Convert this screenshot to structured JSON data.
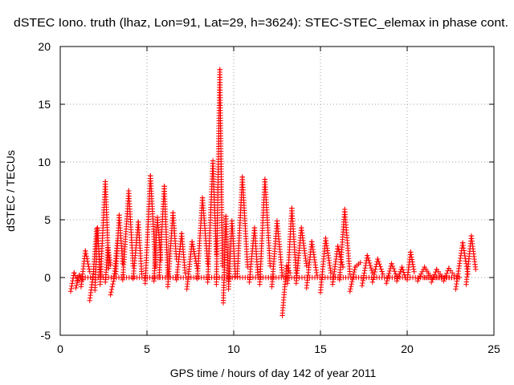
{
  "chart_data": {
    "type": "scatter",
    "title": "dSTEC Iono. truth (lhaz, Lon=91, Lat=29, h=3624): STEC-STEC_elemax in phase cont.",
    "xlabel": "GPS time / hours of day 142 of year 2011",
    "ylabel": "dSTEC  / TECUs",
    "xlim": [
      0,
      25
    ],
    "ylim": [
      -5,
      20
    ],
    "xticks": [
      0,
      5,
      10,
      15,
      20,
      25
    ],
    "yticks": [
      -5,
      0,
      5,
      10,
      15,
      20
    ],
    "grid": true,
    "marker": "plus",
    "color": "#ff0000",
    "arcs": [
      {
        "x": [
          0.6,
          0.8,
          1.0
        ],
        "y": [
          -1.2,
          0.4,
          -0.3
        ]
      },
      {
        "x": [
          0.9,
          1.1,
          1.3
        ],
        "y": [
          -0.9,
          0.2,
          -0.2
        ]
      },
      {
        "x": [
          1.2,
          1.45,
          1.7
        ],
        "y": [
          -0.8,
          2.3,
          0.5
        ]
      },
      {
        "x": [
          1.7,
          1.9,
          2.1
        ],
        "y": [
          -2.0,
          0.3,
          4.2
        ]
      },
      {
        "x": [
          2.0,
          2.15,
          2.3
        ],
        "y": [
          -1.1,
          4.3,
          0.2
        ]
      },
      {
        "x": [
          2.3,
          2.6,
          2.8
        ],
        "y": [
          -0.6,
          8.3,
          0.8
        ]
      },
      {
        "x": [
          2.6,
          2.75,
          2.9
        ],
        "y": [
          -0.4,
          2.6,
          1.1
        ]
      },
      {
        "x": [
          2.9,
          3.1,
          3.3
        ],
        "y": [
          -1.5,
          -0.1,
          3.2
        ]
      },
      {
        "x": [
          3.2,
          3.4,
          3.6
        ],
        "y": [
          0.3,
          5.4,
          1.2
        ]
      },
      {
        "x": [
          3.6,
          3.95,
          4.2
        ],
        "y": [
          -0.2,
          7.5,
          1.0
        ]
      },
      {
        "x": [
          4.2,
          4.5,
          4.7
        ],
        "y": [
          -0.1,
          4.8,
          0.3
        ]
      },
      {
        "x": [
          4.9,
          5.2,
          5.5
        ],
        "y": [
          -0.5,
          8.8,
          0.9
        ]
      },
      {
        "x": [
          5.4,
          5.6,
          5.8
        ],
        "y": [
          -0.3,
          5.2,
          1.5
        ]
      },
      {
        "x": [
          5.7,
          6.0,
          6.2
        ],
        "y": [
          0.0,
          7.9,
          0.2
        ]
      },
      {
        "x": [
          6.2,
          6.5,
          6.7
        ],
        "y": [
          -0.8,
          5.6,
          1.6
        ]
      },
      {
        "x": [
          6.7,
          7.0,
          7.2
        ],
        "y": [
          -0.2,
          3.8,
          0.4
        ]
      },
      {
        "x": [
          7.3,
          7.6,
          7.9
        ],
        "y": [
          -1.0,
          3.1,
          0.8
        ]
      },
      {
        "x": [
          7.9,
          8.2,
          8.5
        ],
        "y": [
          -0.1,
          6.9,
          1.2
        ]
      },
      {
        "x": [
          8.5,
          8.8,
          9.0
        ],
        "y": [
          -0.4,
          10.1,
          2.0
        ]
      },
      {
        "x": [
          9.0,
          9.2,
          9.35
        ],
        "y": [
          -0.6,
          18.0,
          1.0
        ]
      },
      {
        "x": [
          9.4,
          9.55,
          9.7
        ],
        "y": [
          -2.2,
          5.3,
          -0.3
        ]
      },
      {
        "x": [
          9.7,
          9.9,
          10.1
        ],
        "y": [
          -1.0,
          4.9,
          0.1
        ]
      },
      {
        "x": [
          10.2,
          10.5,
          10.8
        ],
        "y": [
          0.1,
          8.7,
          0.9
        ]
      },
      {
        "x": [
          10.9,
          11.2,
          11.4
        ],
        "y": [
          -0.4,
          4.3,
          0.0
        ]
      },
      {
        "x": [
          11.5,
          11.8,
          12.1
        ],
        "y": [
          -0.6,
          8.5,
          1.0
        ]
      },
      {
        "x": [
          12.2,
          12.5,
          12.8
        ],
        "y": [
          -0.8,
          4.9,
          0.2
        ]
      },
      {
        "x": [
          12.8,
          13.05,
          13.25
        ],
        "y": [
          -3.3,
          1.0,
          0.4
        ]
      },
      {
        "x": [
          13.1,
          13.35,
          13.6
        ],
        "y": [
          -0.5,
          6.0,
          0.4
        ]
      },
      {
        "x": [
          13.6,
          13.9,
          14.2
        ],
        "y": [
          -0.5,
          4.3,
          1.0
        ]
      },
      {
        "x": [
          14.2,
          14.5,
          14.8
        ],
        "y": [
          -0.9,
          3.1,
          0.2
        ]
      },
      {
        "x": [
          15.0,
          15.3,
          15.6
        ],
        "y": [
          -1.3,
          3.4,
          0.4
        ]
      },
      {
        "x": [
          15.7,
          16.0,
          16.3
        ],
        "y": [
          -0.6,
          2.7,
          0.9
        ]
      },
      {
        "x": [
          16.1,
          16.4,
          16.7
        ],
        "y": [
          -0.2,
          5.9,
          0.3
        ]
      },
      {
        "x": [
          16.7,
          17.0,
          17.3
        ],
        "y": [
          -1.2,
          0.9,
          1.3
        ]
      },
      {
        "x": [
          17.4,
          17.7,
          18.0
        ],
        "y": [
          -0.7,
          1.9,
          0.4
        ]
      },
      {
        "x": [
          18.0,
          18.3,
          18.6
        ],
        "y": [
          -0.4,
          1.6,
          0.3
        ]
      },
      {
        "x": [
          18.8,
          19.1,
          19.4
        ],
        "y": [
          -0.5,
          1.2,
          0.1
        ]
      },
      {
        "x": [
          19.4,
          19.7,
          19.9
        ],
        "y": [
          -0.3,
          0.9,
          0.0
        ]
      },
      {
        "x": [
          20.0,
          20.2,
          20.4
        ],
        "y": [
          -0.2,
          2.2,
          0.5
        ]
      },
      {
        "x": [
          20.6,
          21.0,
          21.3
        ],
        "y": [
          -0.3,
          0.9,
          0.2
        ]
      },
      {
        "x": [
          21.4,
          21.7,
          22.0
        ],
        "y": [
          -0.4,
          0.7,
          0.1
        ]
      },
      {
        "x": [
          22.1,
          22.4,
          22.7
        ],
        "y": [
          -0.3,
          0.8,
          0.2
        ]
      },
      {
        "x": [
          22.8,
          23.2,
          23.5
        ],
        "y": [
          -1.0,
          3.0,
          0.3
        ]
      },
      {
        "x": [
          23.4,
          23.7,
          23.95
        ],
        "y": [
          -0.6,
          3.6,
          0.7
        ]
      },
      {
        "x": [
          21.0,
          22.0,
          23.0
        ],
        "y": [
          0.0,
          0.0,
          0.0
        ]
      },
      {
        "x": [
          1.0,
          12.0,
          23.0
        ],
        "y": [
          0.0,
          0.0,
          0.0
        ]
      }
    ]
  }
}
